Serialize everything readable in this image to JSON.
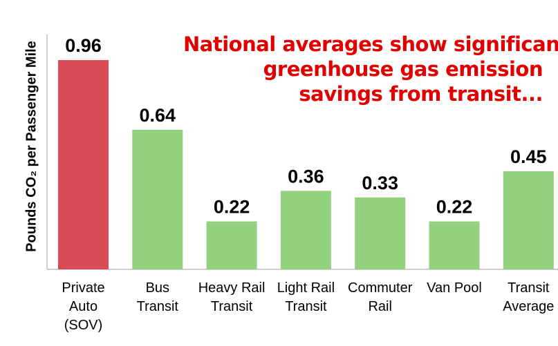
{
  "headline": {
    "lines": [
      "National averages show significant",
      "greenhouse gas emission",
      "savings from transit..."
    ],
    "color": "#e00000"
  },
  "chart_data": {
    "type": "bar",
    "ylabel": "Pounds CO₂ per Passenger Mile",
    "ylim": [
      0,
      0.96
    ],
    "grid": false,
    "categories": [
      [
        "Private",
        "Auto",
        "(SOV)"
      ],
      [
        "Bus",
        "Transit"
      ],
      [
        "Heavy Rail",
        "Transit"
      ],
      [
        "Light Rail",
        "Transit"
      ],
      [
        "Commuter",
        "Rail"
      ],
      [
        "Van Pool"
      ],
      [
        "Transit",
        "Average"
      ]
    ],
    "values": [
      0.96,
      0.64,
      0.22,
      0.36,
      0.33,
      0.22,
      0.45
    ],
    "value_labels": [
      "0.96",
      "0.64",
      "0.22",
      "0.36",
      "0.33",
      "0.22",
      "0.45"
    ],
    "colors": [
      "#d94b55",
      "#93d17e",
      "#93d17e",
      "#93d17e",
      "#93d17e",
      "#93d17e",
      "#93d17e"
    ]
  }
}
